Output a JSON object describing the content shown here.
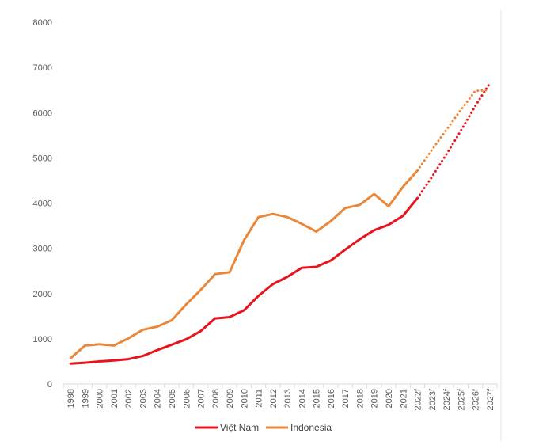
{
  "chart_data": {
    "type": "line",
    "title": "",
    "xlabel": "",
    "ylabel": "",
    "ylim": [
      0,
      8000
    ],
    "yticks": [
      "0",
      "1000",
      "2000",
      "3000",
      "4000",
      "5000",
      "6000",
      "7000",
      "8000"
    ],
    "categories": [
      "1998",
      "1999",
      "2000",
      "2001",
      "2002",
      "2003",
      "2004",
      "2005",
      "2006",
      "2007",
      "2008",
      "2009",
      "2010",
      "2011",
      "2012",
      "2013",
      "2014",
      "2015",
      "2016",
      "2017",
      "2018",
      "2019",
      "2020",
      "2021",
      "2022f",
      "2023f",
      "2024f",
      "2025f",
      "2026f",
      "2027f"
    ],
    "series": [
      {
        "name": "Việt Nam",
        "color": "#e8141d",
        "values": [
          450,
          470,
          500,
          520,
          550,
          620,
          750,
          870,
          990,
          1170,
          1450,
          1480,
          1630,
          1950,
          2210,
          2370,
          2570,
          2590,
          2730,
          2970,
          3200,
          3400,
          3520,
          3720,
          4110,
          null,
          null,
          null,
          null,
          null
        ],
        "forecast": [
          null,
          null,
          null,
          null,
          null,
          null,
          null,
          null,
          null,
          null,
          null,
          null,
          null,
          null,
          null,
          null,
          null,
          null,
          null,
          null,
          null,
          null,
          null,
          null,
          4110,
          4580,
          5080,
          5600,
          6150,
          6650
        ]
      },
      {
        "name": "Indonesia",
        "color": "#e9873a",
        "values": [
          570,
          850,
          880,
          850,
          1010,
          1200,
          1270,
          1410,
          1760,
          2080,
          2430,
          2470,
          3180,
          3690,
          3760,
          3690,
          3540,
          3370,
          3600,
          3890,
          3960,
          4200,
          3930,
          4360,
          4720,
          null,
          null,
          null,
          null,
          null
        ],
        "forecast": [
          null,
          null,
          null,
          null,
          null,
          null,
          null,
          null,
          null,
          null,
          null,
          null,
          null,
          null,
          null,
          null,
          null,
          null,
          null,
          null,
          null,
          null,
          null,
          null,
          4720,
          5180,
          5620,
          6060,
          6480,
          6500
        ]
      }
    ],
    "grid": false,
    "legend": "bottom"
  }
}
